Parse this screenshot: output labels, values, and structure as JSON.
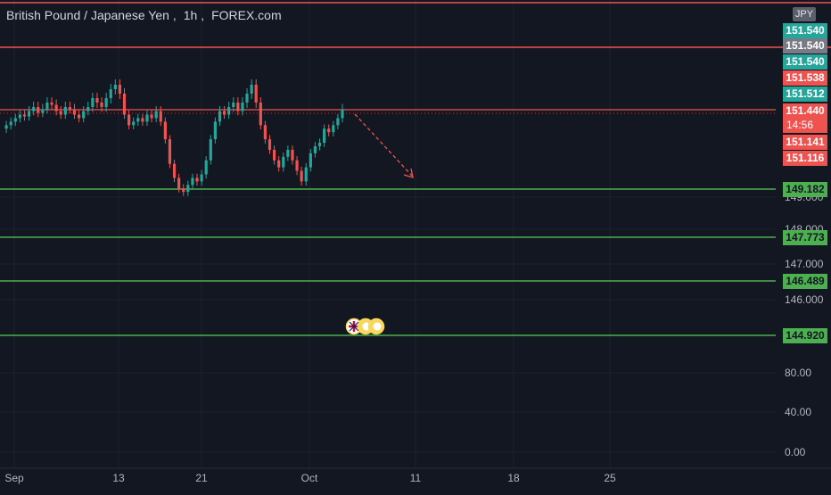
{
  "header": {
    "symbol_name": "British Pound / Japanese Yen",
    "interval": "1h",
    "source": "FOREX.com",
    "currency": "JPY"
  },
  "colors": {
    "background": "#131722",
    "candle_up": "#26a69a",
    "candle_down": "#ef5350",
    "resistance": "#ef5350",
    "support": "#4caf50",
    "neutral_tag": "#787b86"
  },
  "chart_data": {
    "type": "candlestick",
    "title": "British Pound / Japanese Yen, 1h, FOREX.com",
    "x_ticks": [
      "Sep",
      "13",
      "21",
      "Oct",
      "11",
      "18",
      "25"
    ],
    "y_ticks": [
      "149.000",
      "148.000",
      "147.000",
      "146.000",
      "80.00",
      "40.00",
      "0.00"
    ],
    "price_tags": [
      {
        "label": "151.540",
        "kind": "up"
      },
      {
        "label": "151.540",
        "kind": "neutral"
      },
      {
        "label": "151.540",
        "kind": "up"
      },
      {
        "label": "151.538",
        "kind": "down"
      },
      {
        "label": "151.512",
        "kind": "up"
      },
      {
        "label": "151.440",
        "kind": "down"
      },
      {
        "label": "14:56",
        "kind": "down"
      },
      {
        "label": "151.141",
        "kind": "down"
      },
      {
        "label": "151.116",
        "kind": "down"
      }
    ],
    "support_levels": [
      {
        "label": "149.182",
        "value": 149.182
      },
      {
        "label": "147.773",
        "value": 147.773
      },
      {
        "label": "146.489",
        "value": 146.489
      },
      {
        "label": "144.920",
        "value": 144.92
      }
    ],
    "resistance_levels": [
      {
        "value": 151.44
      }
    ],
    "price_series": [
      150.9,
      151.0,
      151.1,
      151.2,
      151.3,
      151.25,
      151.4,
      151.5,
      151.35,
      151.45,
      151.6,
      151.55,
      151.4,
      151.3,
      151.5,
      151.45,
      151.3,
      151.2,
      151.4,
      151.5,
      151.7,
      151.6,
      151.5,
      151.7,
      151.9,
      152.0,
      151.8,
      151.3,
      151.0,
      151.1,
      151.2,
      151.1,
      151.3,
      151.2,
      151.4,
      151.1,
      150.6,
      149.9,
      149.5,
      149.2,
      149.1,
      149.3,
      149.5,
      149.4,
      149.6,
      150.0,
      150.6,
      151.1,
      151.4,
      151.3,
      151.5,
      151.6,
      151.4,
      151.6,
      151.8,
      152.0,
      151.6,
      151.0,
      150.6,
      150.3,
      150.0,
      149.8,
      150.1,
      150.3,
      150.0,
      149.7,
      149.4,
      149.8,
      150.2,
      150.4,
      150.5,
      150.9,
      150.8,
      151.0,
      151.2,
      151.45
    ],
    "forecast": {
      "direction": "down"
    },
    "events": [
      "GB",
      "event",
      "event"
    ]
  }
}
